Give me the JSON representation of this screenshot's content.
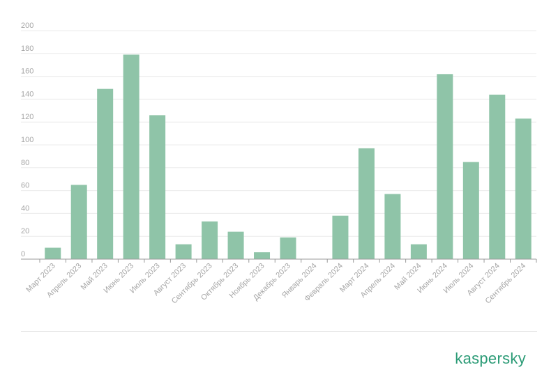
{
  "brand": {
    "logo_text": "kaspersky",
    "color": "#2b9b76"
  },
  "colors": {
    "bar": "#8fc4a8",
    "grid": "#ebebeb",
    "tick_text": "#a6a6a6",
    "axis": "#9a9a9a"
  },
  "chart_data": {
    "type": "bar",
    "title": "",
    "xlabel": "",
    "ylabel": "",
    "ylim": [
      0,
      200
    ],
    "yticks": [
      0,
      20,
      40,
      60,
      80,
      100,
      120,
      140,
      160,
      180,
      200
    ],
    "grid": true,
    "legend": "none",
    "categories": [
      "Март 2023",
      "Апрель 2023",
      "Май 2023",
      "Июнь 2023",
      "Июль 2023",
      "Август 2023",
      "Сентябрь 2023",
      "Октябрь 2023",
      "Ноябрь 2023",
      "Декабрь 2023",
      "Январь 2024",
      "Февраль 2024",
      "Март 2024",
      "Апрель 2024",
      "Май 2024",
      "Июнь 2024",
      "Июль 2024",
      "Август 2024",
      "Сентябрь 2024"
    ],
    "values": [
      10,
      65,
      149,
      179,
      126,
      13,
      33,
      24,
      6,
      19,
      0,
      38,
      97,
      57,
      13,
      162,
      85,
      144,
      123
    ]
  }
}
